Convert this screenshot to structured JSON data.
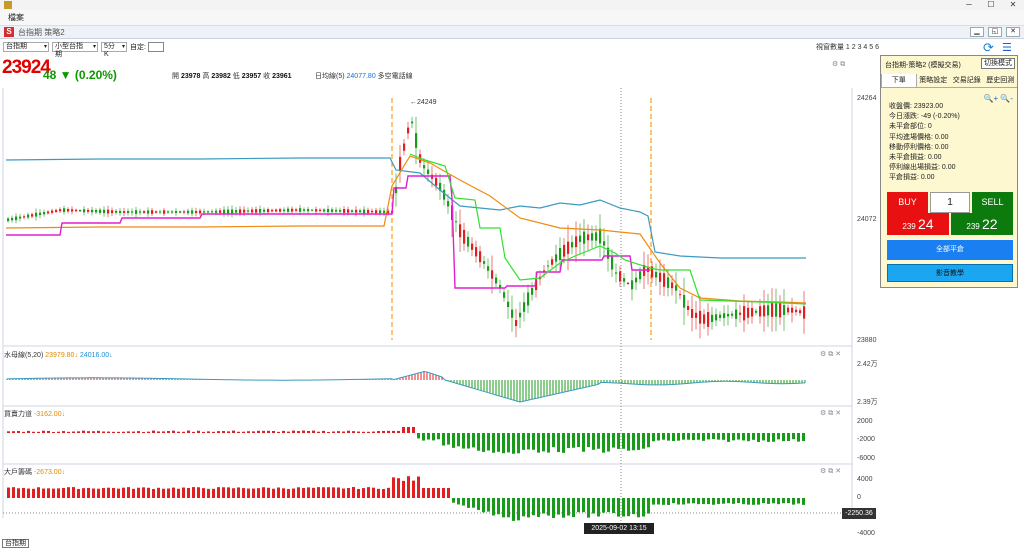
{
  "window": {
    "menu_label": "檔案",
    "app_title": "台指期 策略2",
    "controls": [
      "─",
      "☐",
      "✕"
    ]
  },
  "toolbar": {
    "symbol": "台指期",
    "contract": "小型台指期",
    "interval": "5分K",
    "custom_label": "自定:",
    "window_count": "視窗數量 1 2 3 4 5 6"
  },
  "quote": {
    "price": "23924",
    "change": "48 ▼ (0.20%)",
    "open_label": "開",
    "open": "23978",
    "high_label": "高",
    "high": "23982",
    "low_label": "低",
    "low": "23957",
    "close_label": "收",
    "close": "23961",
    "ma_label": "日均線(5)",
    "ma_value": "24077.80",
    "trend_label": "多空電話線"
  },
  "main_chart": {
    "y_ticks": [
      "24264",
      "24072",
      "23880"
    ],
    "peak_label": "←24249",
    "colors": {
      "up": "#e02020",
      "down": "#1a9a1a",
      "blue_line": "#3c9ac0",
      "orange_line": "#f08a10",
      "magenta_line": "#e020d0",
      "green_line": "#30e030"
    }
  },
  "panels": [
    {
      "id": "water",
      "title": "水母線(5,20)",
      "v1": "23979.80↓",
      "v2": "24016.00↓",
      "y_ticks": [
        "2.42万",
        "2.39万"
      ]
    },
    {
      "id": "power",
      "title": "買賣力道",
      "v1": "-3162.00↓",
      "v2": "",
      "y_ticks": [
        "2000",
        "-2000",
        "-6000"
      ]
    },
    {
      "id": "big",
      "title": "大戶籌碼",
      "v1": "-2673.00↓",
      "v2": "",
      "y_ticks": [
        "4000",
        "0",
        "-4000"
      ]
    }
  ],
  "cursor": {
    "time": "2025-09-02  13:15",
    "price_tag": "-2250.36"
  },
  "trade_panel": {
    "title": "台指期-策略2 (模擬交易)",
    "mode_button": "切換模式",
    "tabs": [
      "下單",
      "策略設定",
      "交易記錄",
      "歷史回測"
    ],
    "zoom_icons": "🔍+ 🔍-",
    "info": [
      "收盤價: 23923.00",
      "今日漲跌: -49 (-0.20%)",
      "未平倉部位: 0",
      "平均進場價格: 0.00",
      "移動停利價格: 0.00",
      "未平倉損益: 0.00",
      "停利線出場損益: 0.00",
      "平倉損益: 0.00"
    ],
    "buy_label": "BUY",
    "qty": "1",
    "sell_label": "SELL",
    "bid_small": "239",
    "bid_large": "24",
    "ask_small": "239",
    "ask_large": "22",
    "flatten_label": "全部平倉",
    "video_label": "影音教學"
  },
  "bottom_tab": "台指期"
}
